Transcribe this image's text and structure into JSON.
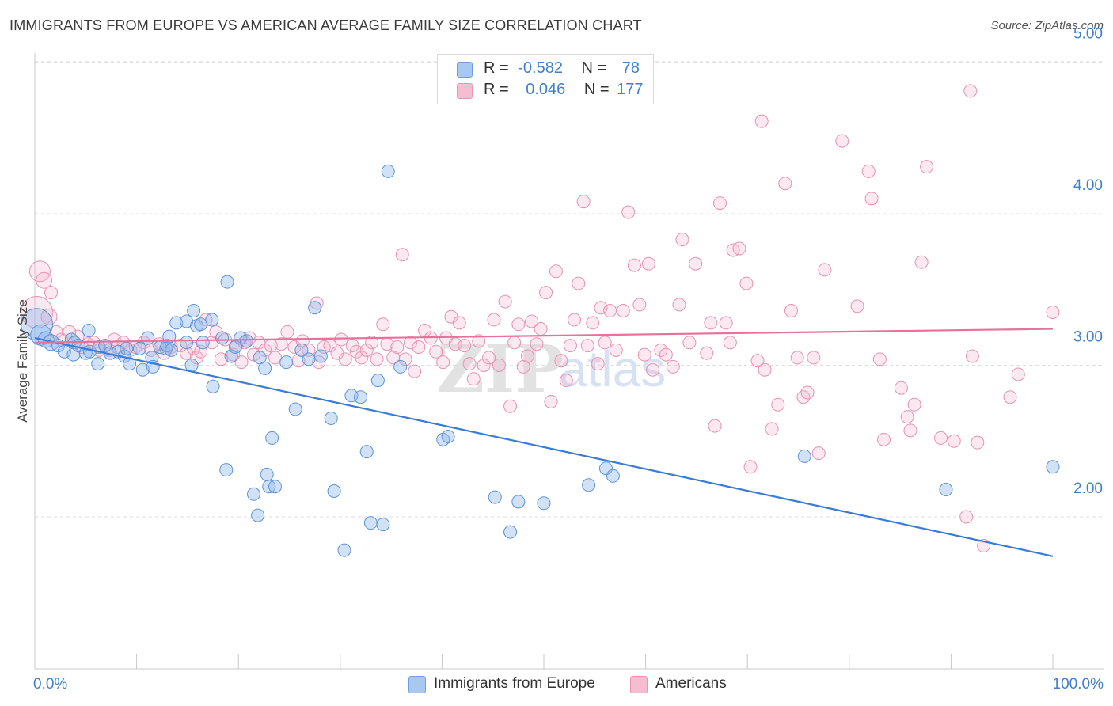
{
  "title": "IMMIGRANTS FROM EUROPE VS AMERICAN AVERAGE FAMILY SIZE CORRELATION CHART",
  "source": "Source: ZipAtlas.com",
  "watermark": {
    "zip": "ZIP",
    "atlas": "atlas"
  },
  "legend": {
    "rows": [
      {
        "r_label": "R =",
        "r_value": "-0.582",
        "n_label": "N =",
        "n_value": "78",
        "color": "#a9c8ef",
        "border": "#6fa0dd"
      },
      {
        "r_label": "R =",
        "r_value": "0.046",
        "n_label": "N =",
        "n_value": "177",
        "color": "#f6bcd0",
        "border": "#e896b3"
      }
    ]
  },
  "bottom_legend": [
    {
      "label": "Immigrants from Europe",
      "color": "#a9c8ef",
      "border": "#6fa0dd"
    },
    {
      "label": "Americans",
      "color": "#f6bcd0",
      "border": "#e896b3"
    }
  ],
  "chart_data": {
    "type": "scatter",
    "title": "IMMIGRANTS FROM EUROPE VS AMERICAN AVERAGE FAMILY SIZE CORRELATION CHART",
    "xlabel": "",
    "ylabel": "Average Family Size",
    "xlim": [
      0,
      100
    ],
    "ylim": [
      1.0,
      5.1
    ],
    "x_tick_labels": [
      "0.0%",
      "100.0%"
    ],
    "y_ticks": [
      2.0,
      3.0,
      4.0,
      5.0
    ],
    "y_tick_labels": [
      "2.00",
      "3.00",
      "4.00",
      "5.00"
    ],
    "grid": "horizontal dashed",
    "legend_position": "top-center",
    "colors": {
      "blue": "#3a7bd5",
      "pink": "#e8709a"
    },
    "series": [
      {
        "name": "Immigrants from Europe",
        "color": "#3a7bd5",
        "trend": {
          "x": [
            0,
            100
          ],
          "y": [
            3.18,
            1.74
          ]
        },
        "points": [
          [
            0.2,
            3.27
          ],
          [
            0.6,
            3.2
          ],
          [
            1.1,
            3.17
          ],
          [
            1.6,
            3.15
          ],
          [
            2.3,
            3.13
          ],
          [
            2.9,
            3.09
          ],
          [
            3.6,
            3.17
          ],
          [
            3.9,
            3.15
          ],
          [
            3.8,
            3.07
          ],
          [
            4.3,
            3.13
          ],
          [
            5.0,
            3.08
          ],
          [
            5.4,
            3.09
          ],
          [
            5.3,
            3.23
          ],
          [
            6.2,
            3.01
          ],
          [
            6.3,
            3.12
          ],
          [
            6.9,
            3.13
          ],
          [
            7.4,
            3.08
          ],
          [
            8.2,
            3.09
          ],
          [
            8.8,
            3.06
          ],
          [
            9.0,
            3.11
          ],
          [
            9.3,
            3.01
          ],
          [
            10.3,
            3.11
          ],
          [
            10.6,
            2.97
          ],
          [
            11.1,
            3.18
          ],
          [
            11.5,
            3.05
          ],
          [
            11.6,
            2.99
          ],
          [
            12.3,
            3.12
          ],
          [
            12.9,
            3.11
          ],
          [
            13.0,
            3.13
          ],
          [
            13.2,
            3.19
          ],
          [
            13.4,
            3.1
          ],
          [
            13.9,
            3.28
          ],
          [
            14.9,
            3.29
          ],
          [
            14.9,
            3.15
          ],
          [
            15.4,
            3.0
          ],
          [
            15.6,
            3.36
          ],
          [
            15.9,
            3.26
          ],
          [
            16.3,
            3.27
          ],
          [
            16.5,
            3.15
          ],
          [
            17.4,
            3.3
          ],
          [
            17.5,
            2.86
          ],
          [
            18.4,
            3.18
          ],
          [
            18.9,
            3.55
          ],
          [
            18.8,
            2.31
          ],
          [
            19.3,
            3.06
          ],
          [
            19.7,
            3.12
          ],
          [
            20.2,
            3.18
          ],
          [
            20.8,
            3.16
          ],
          [
            21.5,
            2.15
          ],
          [
            21.9,
            2.01
          ],
          [
            22.1,
            3.05
          ],
          [
            22.6,
            2.98
          ],
          [
            22.8,
            2.28
          ],
          [
            23.0,
            2.2
          ],
          [
            23.6,
            2.2
          ],
          [
            24.7,
            3.02
          ],
          [
            23.3,
            2.52
          ],
          [
            25.6,
            2.71
          ],
          [
            26.2,
            3.1
          ],
          [
            26.9,
            3.04
          ],
          [
            27.5,
            3.38
          ],
          [
            28.1,
            3.06
          ],
          [
            29.1,
            2.65
          ],
          [
            29.4,
            2.17
          ],
          [
            30.4,
            1.78
          ],
          [
            31.1,
            2.8
          ],
          [
            32.0,
            2.79
          ],
          [
            32.6,
            2.43
          ],
          [
            33.0,
            1.96
          ],
          [
            33.7,
            2.9
          ],
          [
            34.2,
            1.95
          ],
          [
            34.7,
            4.28
          ],
          [
            35.9,
            2.99
          ],
          [
            40.1,
            2.51
          ],
          [
            40.6,
            2.53
          ],
          [
            45.2,
            2.13
          ],
          [
            46.7,
            1.9
          ],
          [
            47.5,
            2.1
          ],
          [
            50.0,
            2.09
          ],
          [
            54.4,
            2.21
          ],
          [
            56.1,
            2.32
          ],
          [
            56.8,
            2.27
          ],
          [
            75.6,
            2.4
          ],
          [
            89.5,
            2.18
          ],
          [
            100.0,
            2.33
          ]
        ]
      },
      {
        "name": "Americans",
        "color": "#e8709a",
        "trend": {
          "x": [
            0,
            100
          ],
          "y": [
            3.15,
            3.24
          ]
        },
        "points": [
          [
            0.2,
            3.35
          ],
          [
            0.5,
            3.62
          ],
          [
            0.9,
            3.56
          ],
          [
            1.4,
            3.32
          ],
          [
            1.6,
            3.48
          ],
          [
            2.1,
            3.22
          ],
          [
            2.6,
            3.17
          ],
          [
            3.4,
            3.22
          ],
          [
            4.2,
            3.19
          ],
          [
            4.6,
            3.12
          ],
          [
            5.2,
            3.14
          ],
          [
            5.8,
            3.15
          ],
          [
            6.3,
            3.1
          ],
          [
            6.9,
            3.13
          ],
          [
            7.3,
            3.1
          ],
          [
            7.8,
            3.17
          ],
          [
            8.1,
            3.12
          ],
          [
            8.7,
            3.15
          ],
          [
            9.4,
            3.1
          ],
          [
            9.9,
            3.12
          ],
          [
            10.7,
            3.15
          ],
          [
            11.4,
            3.1
          ],
          [
            12.2,
            3.14
          ],
          [
            12.7,
            3.08
          ],
          [
            13.4,
            3.12
          ],
          [
            14.3,
            3.13
          ],
          [
            14.9,
            3.08
          ],
          [
            15.6,
            3.11
          ],
          [
            15.9,
            3.05
          ],
          [
            16.3,
            3.09
          ],
          [
            16.8,
            3.3
          ],
          [
            17.4,
            3.15
          ],
          [
            17.8,
            3.22
          ],
          [
            18.3,
            3.04
          ],
          [
            18.7,
            3.17
          ],
          [
            19.5,
            3.07
          ],
          [
            19.8,
            3.13
          ],
          [
            20.3,
            3.02
          ],
          [
            20.6,
            3.15
          ],
          [
            21.1,
            3.18
          ],
          [
            21.5,
            3.07
          ],
          [
            22.0,
            3.15
          ],
          [
            22.6,
            3.1
          ],
          [
            23.2,
            3.13
          ],
          [
            23.6,
            3.05
          ],
          [
            24.2,
            3.14
          ],
          [
            24.8,
            3.22
          ],
          [
            25.5,
            3.12
          ],
          [
            25.9,
            3.03
          ],
          [
            26.3,
            3.16
          ],
          [
            26.9,
            3.1
          ],
          [
            27.7,
            3.41
          ],
          [
            27.9,
            3.02
          ],
          [
            28.4,
            3.12
          ],
          [
            29.0,
            3.13
          ],
          [
            29.7,
            3.08
          ],
          [
            30.1,
            3.17
          ],
          [
            30.5,
            3.04
          ],
          [
            31.2,
            3.13
          ],
          [
            31.6,
            3.09
          ],
          [
            32.1,
            3.05
          ],
          [
            32.6,
            3.1
          ],
          [
            33.1,
            3.15
          ],
          [
            33.6,
            3.04
          ],
          [
            34.2,
            3.27
          ],
          [
            34.6,
            3.14
          ],
          [
            35.2,
            3.05
          ],
          [
            35.6,
            3.12
          ],
          [
            36.1,
            3.73
          ],
          [
            36.4,
            3.04
          ],
          [
            36.9,
            3.15
          ],
          [
            37.3,
            2.96
          ],
          [
            37.7,
            3.12
          ],
          [
            38.3,
            3.23
          ],
          [
            38.9,
            3.18
          ],
          [
            39.4,
            3.09
          ],
          [
            40.1,
            3.02
          ],
          [
            40.4,
            3.18
          ],
          [
            40.9,
            3.32
          ],
          [
            41.3,
            3.14
          ],
          [
            41.7,
            3.28
          ],
          [
            42.2,
            3.13
          ],
          [
            42.7,
            3.01
          ],
          [
            43.1,
            2.91
          ],
          [
            43.6,
            3.16
          ],
          [
            44.1,
            3.0
          ],
          [
            44.6,
            3.05
          ],
          [
            45.1,
            3.3
          ],
          [
            45.6,
            3.0
          ],
          [
            46.2,
            3.42
          ],
          [
            46.7,
            2.73
          ],
          [
            47.1,
            3.15
          ],
          [
            47.5,
            3.27
          ],
          [
            48.0,
            2.99
          ],
          [
            48.4,
            3.06
          ],
          [
            48.8,
            3.29
          ],
          [
            49.3,
            3.14
          ],
          [
            49.7,
            3.24
          ],
          [
            50.2,
            3.48
          ],
          [
            50.7,
            2.76
          ],
          [
            51.2,
            3.62
          ],
          [
            51.7,
            3.03
          ],
          [
            52.2,
            2.9
          ],
          [
            52.6,
            3.13
          ],
          [
            53.0,
            3.3
          ],
          [
            53.4,
            3.54
          ],
          [
            53.9,
            4.08
          ],
          [
            54.3,
            3.13
          ],
          [
            54.8,
            3.28
          ],
          [
            55.3,
            3.01
          ],
          [
            55.6,
            3.38
          ],
          [
            56.0,
            3.15
          ],
          [
            56.5,
            3.36
          ],
          [
            57.1,
            3.1
          ],
          [
            57.8,
            3.36
          ],
          [
            58.3,
            4.01
          ],
          [
            58.9,
            3.66
          ],
          [
            59.4,
            3.4
          ],
          [
            59.9,
            3.07
          ],
          [
            60.3,
            3.67
          ],
          [
            60.7,
            2.97
          ],
          [
            61.5,
            3.1
          ],
          [
            62.0,
            3.07
          ],
          [
            62.7,
            2.99
          ],
          [
            63.3,
            3.4
          ],
          [
            63.6,
            3.83
          ],
          [
            64.3,
            3.15
          ],
          [
            64.9,
            3.67
          ],
          [
            66.0,
            3.08
          ],
          [
            66.4,
            3.28
          ],
          [
            66.8,
            2.6
          ],
          [
            67.3,
            4.07
          ],
          [
            67.9,
            3.28
          ],
          [
            68.3,
            3.15
          ],
          [
            68.6,
            3.76
          ],
          [
            69.2,
            3.77
          ],
          [
            69.9,
            3.54
          ],
          [
            70.3,
            2.33
          ],
          [
            71.0,
            3.03
          ],
          [
            71.4,
            4.61
          ],
          [
            71.7,
            2.97
          ],
          [
            72.4,
            2.58
          ],
          [
            73.0,
            2.74
          ],
          [
            73.7,
            4.2
          ],
          [
            74.3,
            3.36
          ],
          [
            74.9,
            3.05
          ],
          [
            75.5,
            2.79
          ],
          [
            75.9,
            2.82
          ],
          [
            76.5,
            3.05
          ],
          [
            77.0,
            2.42
          ],
          [
            77.6,
            3.63
          ],
          [
            79.3,
            4.48
          ],
          [
            80.8,
            3.39
          ],
          [
            81.9,
            4.28
          ],
          [
            82.2,
            4.1
          ],
          [
            83.0,
            3.04
          ],
          [
            83.4,
            2.51
          ],
          [
            85.1,
            2.85
          ],
          [
            85.7,
            2.66
          ],
          [
            86.0,
            2.57
          ],
          [
            86.4,
            2.74
          ],
          [
            87.1,
            3.68
          ],
          [
            87.6,
            4.31
          ],
          [
            89.0,
            2.52
          ],
          [
            90.3,
            2.5
          ],
          [
            91.5,
            2.0
          ],
          [
            91.9,
            4.81
          ],
          [
            92.1,
            3.06
          ],
          [
            92.6,
            2.49
          ],
          [
            93.2,
            1.81
          ],
          [
            95.8,
            2.79
          ],
          [
            96.6,
            2.94
          ],
          [
            100.0,
            3.35
          ]
        ]
      }
    ]
  }
}
